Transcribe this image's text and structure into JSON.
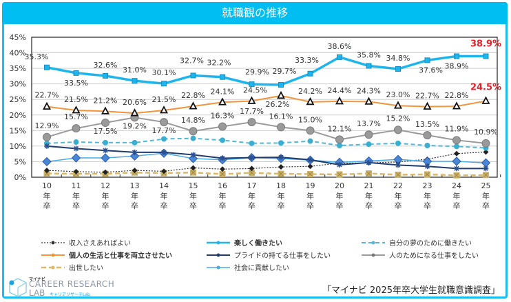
{
  "header": {
    "title": "就職観の推移"
  },
  "footer": {
    "source": "「マイナビ 2025年卒大学生就職意識調査」",
    "logo_small": "マイナビ",
    "logo_main": "CAREER RESEARCH",
    "logo_lab": "LAB",
    "logo_sub": "キャリアリサーチLab"
  },
  "chart_data": {
    "type": "line",
    "title": "就職観の推移",
    "xlabel": "",
    "ylabel": "",
    "ylim": [
      0,
      45
    ],
    "yticks": [
      "0%",
      "5%",
      "10%",
      "15%",
      "20%",
      "25%",
      "30%",
      "35%",
      "40%",
      "45%"
    ],
    "ytick_values": [
      0,
      5,
      10,
      15,
      20,
      25,
      30,
      35,
      40,
      45
    ],
    "categories": [
      "10",
      "11",
      "12",
      "13",
      "14",
      "15",
      "16",
      "17",
      "18",
      "19",
      "20",
      "21",
      "22",
      "23",
      "24",
      "25"
    ],
    "category_suffix": [
      "年",
      "卒"
    ],
    "grid": true,
    "legend_position": "bottom",
    "series": [
      {
        "name": "楽しく働きたい",
        "color": "#1eb4ec",
        "style": "solid-thick",
        "marker": "square",
        "values": [
          35.3,
          33.5,
          32.6,
          31.0,
          30.1,
          32.7,
          32.2,
          29.9,
          29.7,
          33.3,
          38.6,
          35.8,
          34.8,
          37.6,
          38.9,
          38.9
        ],
        "labels": [
          "35.3%",
          "33.5%",
          "32.6%",
          "31.0%",
          "30.1%",
          "32.7%",
          "32.2%",
          "29.9%",
          "29.7%",
          "33.3%",
          "38.6%",
          "35.8%",
          "34.8%",
          "37.6%",
          "38.9%",
          "38.9%"
        ],
        "highlight_last": true
      },
      {
        "name": "個人の生活と仕事を両立させたい",
        "color": "#f0953a",
        "style": "solid",
        "marker": "triangle",
        "values": [
          22.7,
          21.5,
          21.2,
          20.6,
          21.5,
          22.8,
          24.1,
          24.5,
          26.2,
          24.2,
          24.4,
          24.3,
          23.0,
          22.7,
          22.8,
          24.5
        ],
        "labels": [
          "22.7%",
          "21.5%",
          "21.2%",
          "20.6%",
          "21.5%",
          "22.8%",
          "24.1%",
          "24.5%",
          "26.2%",
          "24.2%",
          "24.4%",
          "24.3%",
          "23.0%",
          "22.7%",
          "22.8%",
          "24.5%"
        ],
        "highlight_last": true
      },
      {
        "name": "人のためになる仕事をしたい",
        "color": "#9a9a9a",
        "style": "solid",
        "marker": "circle",
        "values": [
          12.9,
          15.7,
          17.5,
          19.2,
          17.7,
          14.8,
          16.3,
          17.7,
          16.1,
          15.0,
          12.1,
          13.7,
          15.2,
          13.5,
          11.9,
          10.9
        ],
        "labels": [
          "12.9%",
          "15.7%",
          "17.5%",
          "19.2%",
          "17.7%",
          "14.8%",
          "16.3%",
          "17.7%",
          "16.1%",
          "15.0%",
          "12.1%",
          "13.7%",
          "15.2%",
          "13.5%",
          "11.9%",
          "10.9%"
        ]
      },
      {
        "name": "自分の夢のために働きたい",
        "color": "#4fb8d8",
        "style": "dashed",
        "marker": "dot",
        "values": [
          10.9,
          11.3,
          11.1,
          11.1,
          12.3,
          12.5,
          11.9,
          10.9,
          11.0,
          11.6,
          10.2,
          10.6,
          10.9,
          10.2,
          9.9,
          9.4
        ]
      },
      {
        "name": "プライドの持てる仕事をしたい",
        "color": "#1f3c6e",
        "style": "solid",
        "marker": "star",
        "values": [
          10.0,
          9.2,
          8.6,
          8.0,
          8.0,
          7.2,
          6.1,
          6.3,
          6.4,
          5.6,
          4.0,
          4.7,
          3.9,
          3.5,
          2.8,
          2.8
        ]
      },
      {
        "name": "社会に貢献したい",
        "color": "#47a9e6",
        "style": "solid-thin",
        "marker": "diamond",
        "values": [
          5.0,
          6.2,
          6.2,
          6.8,
          7.7,
          6.0,
          5.6,
          6.3,
          6.0,
          5.5,
          4.8,
          5.2,
          5.7,
          5.1,
          5.1,
          4.6
        ]
      },
      {
        "name": "収入さえあればよい",
        "color": "#333333",
        "style": "dotted",
        "marker": "smalldiamond",
        "values": [
          2.2,
          1.8,
          1.6,
          2.2,
          1.9,
          3.0,
          2.6,
          2.8,
          3.3,
          3.5,
          4.5,
          4.6,
          4.9,
          5.8,
          7.6,
          8.1
        ]
      },
      {
        "name": "出世したい",
        "color": "#d9b86a",
        "style": "dashed-thick",
        "marker": "xsquare",
        "values": [
          1.2,
          1.1,
          1.1,
          1.5,
          1.3,
          1.5,
          1.0,
          1.4,
          1.1,
          1.0,
          0.9,
          1.2,
          0.8,
          0.9,
          0.6,
          0.7
        ]
      }
    ],
    "legend": [
      {
        "name": "収入さえあればよい",
        "series": 6,
        "bold": false
      },
      {
        "name": "楽しく働きたい",
        "series": 0,
        "bold": true
      },
      {
        "name": "自分の夢のために働きたい",
        "series": 3,
        "bold": false
      },
      {
        "name": "個人の生活と仕事を両立させたい",
        "series": 1,
        "bold": true
      },
      {
        "name": "プライドの持てる仕事をしたい",
        "series": 4,
        "bold": false
      },
      {
        "name": "人のためになる仕事をしたい",
        "series": 2,
        "bold": false
      },
      {
        "name": "出世したい",
        "series": 7,
        "bold": false
      },
      {
        "name": "社会に貢献したい",
        "series": 5,
        "bold": false
      }
    ]
  }
}
